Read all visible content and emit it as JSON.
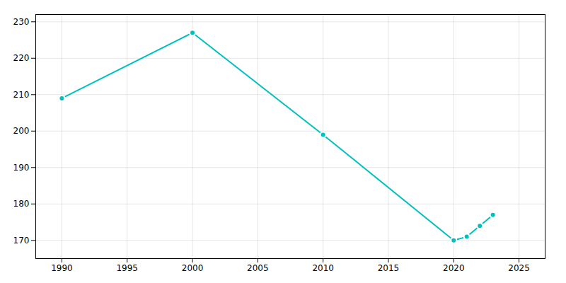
{
  "chart_data": {
    "type": "line",
    "x": [
      1990,
      2000,
      2010,
      2020,
      2021,
      2022,
      2023
    ],
    "values": [
      209,
      227,
      199,
      170,
      171,
      174,
      177
    ],
    "color": "#00bfbf",
    "marker": "circle",
    "xlim": [
      1988,
      2027
    ],
    "ylim": [
      165,
      232
    ],
    "xticks": [
      1990,
      1995,
      2000,
      2005,
      2010,
      2015,
      2020,
      2025
    ],
    "yticks": [
      170,
      180,
      190,
      200,
      210,
      220,
      230
    ],
    "grid": true
  }
}
